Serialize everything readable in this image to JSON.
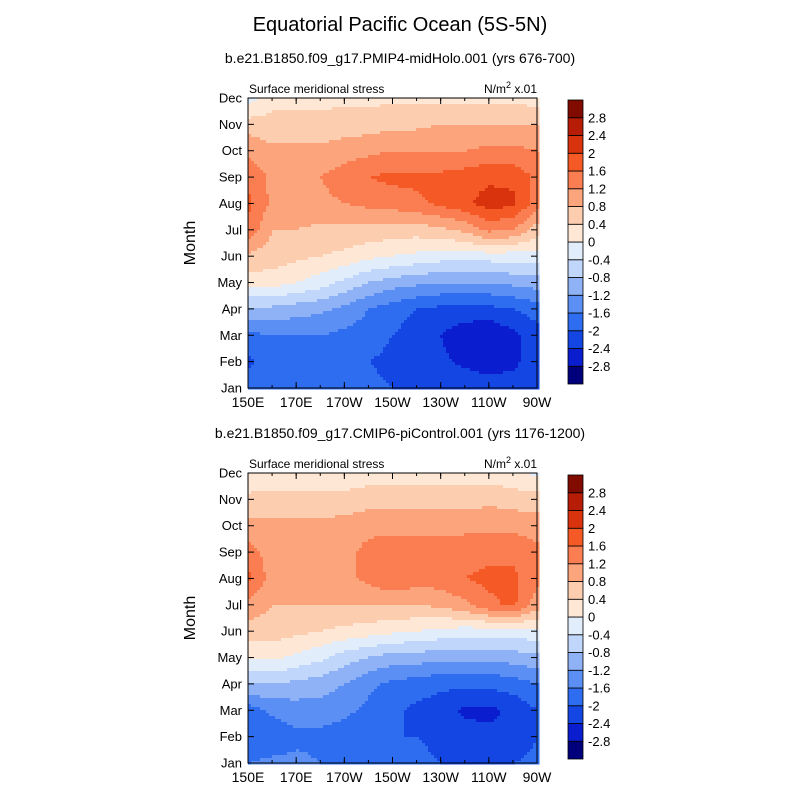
{
  "title": "Equatorial Pacific Ocean (5S-5N)",
  "colors": {
    "levels": [
      -2.8,
      -2.4,
      -2.0,
      -1.6,
      -1.2,
      -0.8,
      -0.4,
      0,
      0.4,
      0.8,
      1.2,
      1.6,
      2.0,
      2.4,
      2.8
    ],
    "fills": [
      "#00007d",
      "#0b1ecf",
      "#1446e4",
      "#2e6cf0",
      "#5b8ff3",
      "#8fb2f6",
      "#c0d6fa",
      "#e2edfc",
      "#fee8d5",
      "#fdcdb0",
      "#fca47c",
      "#fb7e52",
      "#f55a26",
      "#d8330d",
      "#b71c06",
      "#820b00"
    ]
  },
  "colorbar": {
    "labels": [
      "2.8",
      "2.4",
      "2",
      "1.6",
      "1.2",
      "0.8",
      "0.4",
      "0",
      "-0.4",
      "-0.8",
      "-1.2",
      "-1.6",
      "-2",
      "-2.4",
      "-2.8"
    ]
  },
  "chart_data": [
    {
      "type": "heatmap",
      "subtitle": "b.e21.B1850.f09_g17.PMIP4-midHolo.001 (yrs 676-700)",
      "left_string": "Surface meridional stress",
      "right_string": "N/m",
      "right_string_sup": "2",
      "right_string_suffix": " x.01",
      "ylabel": "Month",
      "x_tick_labels": [
        "150E",
        "170E",
        "170W",
        "150W",
        "130W",
        "110W",
        "90W"
      ],
      "x_ticks_lon": [
        150,
        170,
        190,
        210,
        230,
        250,
        270
      ],
      "y_tick_labels": [
        "Jan",
        "Feb",
        "Mar",
        "Apr",
        "May",
        "Jun",
        "Jul",
        "Aug",
        "Sep",
        "Oct",
        "Nov",
        "Dec"
      ],
      "x_lon": [
        150,
        160,
        170,
        180,
        190,
        200,
        210,
        220,
        230,
        240,
        250,
        260,
        270
      ],
      "values": [
        [
          -1.8,
          -1.6,
          -1.6,
          -1.7,
          -1.8,
          -1.9,
          -2.0,
          -2.0,
          -2.1,
          -2.1,
          -2.2,
          -2.2,
          -2.0
        ],
        [
          -2.1,
          -1.8,
          -1.8,
          -1.8,
          -1.9,
          -2.0,
          -2.1,
          -2.2,
          -2.3,
          -2.5,
          -2.6,
          -2.5,
          -2.2
        ],
        [
          -1.7,
          -1.6,
          -1.6,
          -1.6,
          -1.7,
          -1.8,
          -2.0,
          -2.2,
          -2.4,
          -2.7,
          -2.8,
          -2.5,
          -2.2
        ],
        [
          -0.9,
          -0.9,
          -1.0,
          -1.1,
          -1.3,
          -1.6,
          -1.8,
          -2.0,
          -2.1,
          -2.1,
          -2.1,
          -2.0,
          -1.8
        ],
        [
          0.2,
          0.2,
          0.0,
          -0.2,
          -0.5,
          -0.8,
          -1.0,
          -1.1,
          -1.2,
          -1.2,
          -1.2,
          -1.1,
          -1.0
        ],
        [
          0.7,
          0.6,
          0.5,
          0.4,
          0.3,
          0.1,
          0.0,
          -0.1,
          -0.2,
          -0.2,
          -0.2,
          -0.2,
          -0.2
        ],
        [
          1.5,
          0.8,
          0.8,
          0.7,
          0.7,
          0.7,
          0.6,
          0.6,
          0.7,
          0.9,
          1.3,
          1.2,
          0.6
        ],
        [
          1.7,
          1.1,
          1.1,
          1.1,
          1.2,
          1.3,
          1.4,
          1.5,
          1.7,
          1.9,
          2.2,
          2.1,
          1.4
        ],
        [
          1.5,
          1.1,
          1.1,
          1.2,
          1.4,
          1.6,
          1.7,
          1.7,
          1.7,
          1.8,
          1.9,
          1.9,
          1.5
        ],
        [
          1.1,
          0.9,
          0.9,
          0.9,
          1.0,
          1.1,
          1.2,
          1.2,
          1.2,
          1.2,
          1.3,
          1.3,
          1.2
        ],
        [
          0.6,
          0.5,
          0.5,
          0.5,
          0.6,
          0.6,
          0.7,
          0.7,
          0.8,
          0.8,
          0.8,
          0.8,
          0.8
        ],
        [
          -0.2,
          0.3,
          0.3,
          0.3,
          0.3,
          0.3,
          0.3,
          0.3,
          0.3,
          0.3,
          0.3,
          0.3,
          0.2
        ]
      ],
      "zlim": [
        -2.8,
        2.8
      ]
    },
    {
      "type": "heatmap",
      "subtitle": "b.e21.B1850.f09_g17.CMIP6-piControl.001 (yrs 1176-1200)",
      "left_string": "Surface meridional stress",
      "right_string": "N/m",
      "right_string_sup": "2",
      "right_string_suffix": " x.01",
      "ylabel": "Month",
      "x_tick_labels": [
        "150E",
        "170E",
        "170W",
        "150W",
        "130W",
        "110W",
        "90W"
      ],
      "x_ticks_lon": [
        150,
        170,
        190,
        210,
        230,
        250,
        270
      ],
      "y_tick_labels": [
        "Jan",
        "Feb",
        "Mar",
        "Apr",
        "May",
        "Jun",
        "Jul",
        "Aug",
        "Sep",
        "Oct",
        "Nov",
        "Dec"
      ],
      "x_lon": [
        150,
        160,
        170,
        180,
        190,
        200,
        210,
        220,
        230,
        240,
        250,
        260,
        270
      ],
      "values": [
        [
          -1.6,
          -1.5,
          -1.5,
          -1.6,
          -1.7,
          -1.8,
          -1.9,
          -1.9,
          -2.0,
          -2.0,
          -2.0,
          -2.0,
          -1.9
        ],
        [
          -2.0,
          -1.9,
          -1.7,
          -1.7,
          -1.8,
          -1.9,
          -2.0,
          -2.0,
          -2.1,
          -2.2,
          -2.3,
          -2.3,
          -2.0
        ],
        [
          -1.8,
          -1.5,
          -1.4,
          -1.4,
          -1.5,
          -1.7,
          -1.9,
          -2.1,
          -2.2,
          -2.5,
          -2.5,
          -2.3,
          -2.0
        ],
        [
          -0.8,
          -0.8,
          -0.9,
          -1.0,
          -1.2,
          -1.5,
          -1.7,
          -1.8,
          -1.9,
          -1.9,
          -1.9,
          -1.8,
          -1.6
        ],
        [
          0.1,
          0.1,
          -0.1,
          -0.3,
          -0.6,
          -0.8,
          -1.0,
          -1.0,
          -1.1,
          -1.1,
          -1.1,
          -1.0,
          -0.9
        ],
        [
          0.6,
          0.6,
          0.5,
          0.4,
          0.3,
          0.2,
          0.1,
          0.0,
          -0.1,
          -0.2,
          -0.2,
          -0.2,
          -0.1
        ],
        [
          1.1,
          0.8,
          0.8,
          0.8,
          0.8,
          0.8,
          0.8,
          0.8,
          0.9,
          1.1,
          1.5,
          1.7,
          1.0
        ],
        [
          1.7,
          1.0,
          1.0,
          1.1,
          1.1,
          1.3,
          1.6,
          1.4,
          1.4,
          1.6,
          1.7,
          1.7,
          1.3
        ],
        [
          1.4,
          1.0,
          1.0,
          1.0,
          1.1,
          1.3,
          1.4,
          1.4,
          1.4,
          1.4,
          1.5,
          1.5,
          1.3
        ],
        [
          0.9,
          0.9,
          0.9,
          0.9,
          1.0,
          1.1,
          1.1,
          1.1,
          1.1,
          1.1,
          1.1,
          1.1,
          1.0
        ],
        [
          0.5,
          0.5,
          0.5,
          0.5,
          0.5,
          0.6,
          0.6,
          0.6,
          0.6,
          0.6,
          0.7,
          0.6,
          0.6
        ],
        [
          0.1,
          0.2,
          0.2,
          0.2,
          0.2,
          0.2,
          0.2,
          0.2,
          0.2,
          0.2,
          0.2,
          0.1,
          -0.1
        ]
      ],
      "zlim": [
        -2.8,
        2.8
      ]
    }
  ]
}
